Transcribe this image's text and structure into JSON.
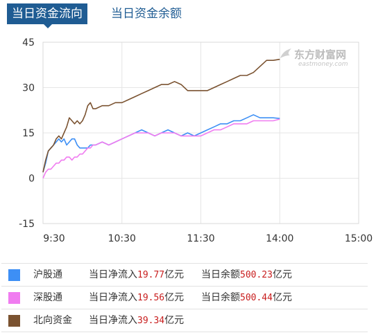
{
  "tabs": {
    "active": "当日资金流向",
    "inactive": "当日资金余额"
  },
  "watermark": {
    "name": "东方财富网",
    "url": "eastmoney.com"
  },
  "chart_data": {
    "type": "line",
    "ylim": [
      -15,
      45
    ],
    "yticks": [
      "45",
      "30",
      "15",
      "0",
      "-15"
    ],
    "xticks": [
      "9:30",
      "10:30",
      "11:30",
      "14:00",
      "15:00"
    ],
    "xlim_minutes": [
      0,
      240
    ],
    "grid": true,
    "series": [
      {
        "name": "沪股通",
        "color": "#3d8ff5",
        "points": [
          [
            0,
            2
          ],
          [
            2,
            5
          ],
          [
            4,
            9
          ],
          [
            6,
            10
          ],
          [
            8,
            11
          ],
          [
            10,
            12
          ],
          [
            12,
            13
          ],
          [
            14,
            12
          ],
          [
            16,
            13
          ],
          [
            18,
            11
          ],
          [
            20,
            12
          ],
          [
            22,
            13
          ],
          [
            24,
            13
          ],
          [
            26,
            11
          ],
          [
            28,
            10
          ],
          [
            30,
            10
          ],
          [
            32,
            10
          ],
          [
            34,
            10
          ],
          [
            36,
            11
          ],
          [
            38,
            11
          ],
          [
            40,
            11
          ],
          [
            45,
            12
          ],
          [
            50,
            11
          ],
          [
            55,
            12
          ],
          [
            60,
            13
          ],
          [
            65,
            14
          ],
          [
            70,
            15
          ],
          [
            75,
            16
          ],
          [
            80,
            15
          ],
          [
            85,
            14
          ],
          [
            90,
            15
          ],
          [
            95,
            16
          ],
          [
            100,
            15
          ],
          [
            105,
            14
          ],
          [
            110,
            15
          ],
          [
            115,
            14
          ],
          [
            120,
            15
          ],
          [
            125,
            16
          ],
          [
            130,
            17
          ],
          [
            135,
            18
          ],
          [
            140,
            18
          ],
          [
            145,
            19
          ],
          [
            150,
            19
          ],
          [
            155,
            20
          ],
          [
            160,
            21
          ],
          [
            165,
            20
          ],
          [
            170,
            20
          ],
          [
            175,
            20
          ],
          [
            180,
            19.77
          ]
        ]
      },
      {
        "name": "深股通",
        "color": "#f07cf0",
        "points": [
          [
            0,
            0
          ],
          [
            2,
            2
          ],
          [
            4,
            3
          ],
          [
            6,
            3
          ],
          [
            8,
            4
          ],
          [
            10,
            5
          ],
          [
            12,
            5
          ],
          [
            14,
            6
          ],
          [
            16,
            6
          ],
          [
            18,
            7
          ],
          [
            20,
            7
          ],
          [
            22,
            6
          ],
          [
            24,
            7
          ],
          [
            26,
            7
          ],
          [
            28,
            8
          ],
          [
            30,
            8
          ],
          [
            32,
            9
          ],
          [
            34,
            10
          ],
          [
            36,
            10
          ],
          [
            38,
            11
          ],
          [
            40,
            11
          ],
          [
            45,
            12
          ],
          [
            50,
            11
          ],
          [
            55,
            12
          ],
          [
            60,
            13
          ],
          [
            65,
            14
          ],
          [
            70,
            15
          ],
          [
            75,
            15
          ],
          [
            80,
            15
          ],
          [
            85,
            14
          ],
          [
            90,
            15
          ],
          [
            95,
            15
          ],
          [
            100,
            15
          ],
          [
            105,
            14
          ],
          [
            110,
            14
          ],
          [
            115,
            14
          ],
          [
            120,
            14
          ],
          [
            125,
            15
          ],
          [
            130,
            16
          ],
          [
            135,
            16
          ],
          [
            140,
            17
          ],
          [
            145,
            18
          ],
          [
            150,
            18
          ],
          [
            155,
            18
          ],
          [
            160,
            19
          ],
          [
            165,
            19
          ],
          [
            170,
            19
          ],
          [
            175,
            19
          ],
          [
            180,
            19.56
          ]
        ]
      },
      {
        "name": "北向资金",
        "color": "#7a5230",
        "points": [
          [
            0,
            2
          ],
          [
            2,
            6
          ],
          [
            4,
            9
          ],
          [
            6,
            10
          ],
          [
            8,
            11
          ],
          [
            10,
            13
          ],
          [
            12,
            14
          ],
          [
            14,
            13
          ],
          [
            16,
            15
          ],
          [
            18,
            17
          ],
          [
            20,
            20
          ],
          [
            22,
            19
          ],
          [
            24,
            18
          ],
          [
            26,
            19
          ],
          [
            28,
            18
          ],
          [
            30,
            19
          ],
          [
            32,
            21
          ],
          [
            34,
            24
          ],
          [
            36,
            25
          ],
          [
            38,
            23
          ],
          [
            40,
            23
          ],
          [
            45,
            24
          ],
          [
            50,
            24
          ],
          [
            55,
            25
          ],
          [
            60,
            25
          ],
          [
            65,
            26
          ],
          [
            70,
            27
          ],
          [
            75,
            28
          ],
          [
            80,
            29
          ],
          [
            85,
            30
          ],
          [
            90,
            31
          ],
          [
            95,
            31
          ],
          [
            100,
            32
          ],
          [
            105,
            31
          ],
          [
            110,
            29
          ],
          [
            115,
            29
          ],
          [
            120,
            29
          ],
          [
            125,
            29
          ],
          [
            130,
            30
          ],
          [
            135,
            31
          ],
          [
            140,
            32
          ],
          [
            145,
            33
          ],
          [
            150,
            34
          ],
          [
            155,
            34
          ],
          [
            160,
            35
          ],
          [
            165,
            37
          ],
          [
            170,
            39
          ],
          [
            175,
            39
          ],
          [
            180,
            39.34
          ]
        ]
      }
    ]
  },
  "legend": [
    {
      "name": "沪股通",
      "color": "#3d8ff5",
      "flow_label": "当日净流入",
      "flow_value": "19.77",
      "flow_unit": "亿元",
      "bal_label": "当日余额",
      "bal_value": "500.23",
      "bal_unit": "亿元"
    },
    {
      "name": "深股通",
      "color": "#f07cf0",
      "flow_label": "当日净流入",
      "flow_value": "19.56",
      "flow_unit": "亿元",
      "bal_label": "当日余额",
      "bal_value": "500.44",
      "bal_unit": "亿元"
    },
    {
      "name": "北向资金",
      "color": "#7a5230",
      "flow_label": "当日净流入",
      "flow_value": "39.34",
      "flow_unit": "亿元"
    }
  ]
}
